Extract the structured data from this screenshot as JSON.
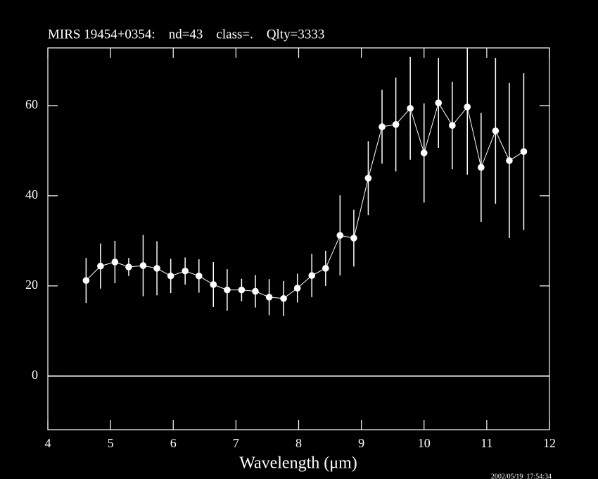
{
  "chart_data": {
    "type": "scatter",
    "title": "MIRS 19454+0354:    nd=43    class=.    Qlty=3333",
    "x_label": "Wavelength (μm)",
    "timestamp": "2002/05/19  17:54:34",
    "xlim": [
      4,
      12
    ],
    "ylim": [
      -11.9,
      72.8
    ],
    "xticks": [
      4,
      5,
      6,
      7,
      8,
      9,
      10,
      11,
      12
    ],
    "yticks": [
      0,
      20,
      40,
      60
    ],
    "hline": 0,
    "color": "#ffffff",
    "series": [
      {
        "x": [
          4.61,
          4.84,
          5.07,
          5.29,
          5.52,
          5.74,
          5.96,
          6.19,
          6.41,
          6.64,
          6.86,
          7.09,
          7.31,
          7.53,
          7.76,
          7.98,
          8.21,
          8.43,
          8.66,
          8.88,
          9.11,
          9.33,
          9.55,
          9.78,
          10.0,
          10.23,
          10.45,
          10.69,
          10.91,
          11.14,
          11.36,
          11.59
        ],
        "values": [
          21.2,
          24.4,
          25.3,
          24.2,
          24.5,
          23.9,
          22.2,
          23.3,
          22.2,
          20.3,
          19.1,
          19.1,
          18.8,
          17.5,
          17.2,
          19.5,
          22.3,
          23.9,
          31.2,
          30.6,
          43.9,
          55.3,
          55.8,
          59.4,
          49.5,
          60.6,
          55.6,
          59.7,
          46.3,
          54.4,
          47.8,
          49.8
        ],
        "errors": [
          5.0,
          5.0,
          4.7,
          2.0,
          6.8,
          6.0,
          3.8,
          3.0,
          3.7,
          5.0,
          4.6,
          2.5,
          3.6,
          4.0,
          3.9,
          3.2,
          4.8,
          3.9,
          8.9,
          6.3,
          8.2,
          8.2,
          10.4,
          11.4,
          11.0,
          10.0,
          9.7,
          15.0,
          12.1,
          16.2,
          17.2,
          17.4
        ]
      }
    ]
  }
}
